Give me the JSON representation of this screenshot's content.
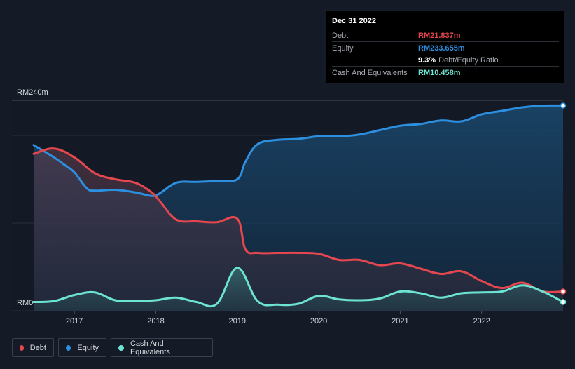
{
  "tooltip": {
    "date": "Dec 31 2022",
    "debt_label": "Debt",
    "debt_value": "RM21.837m",
    "equity_label": "Equity",
    "equity_value": "RM233.655m",
    "ratio_value": "9.3%",
    "ratio_label": "Debt/Equity Ratio",
    "cash_label": "Cash And Equivalents",
    "cash_value": "RM10.458m"
  },
  "legend": {
    "debt": "Debt",
    "equity": "Equity",
    "cash": "Cash And Equivalents"
  },
  "colors": {
    "debt": "#e5474f",
    "equity": "#2d8fe0",
    "cash": "#6de4d2",
    "background": "#151b26"
  },
  "chart_data": {
    "type": "area",
    "title": "",
    "xlabel": "",
    "ylabel": "",
    "y_top_label": "RM240m",
    "y_bottom_label": "RM0",
    "ylim": [
      0,
      240
    ],
    "xlim": [
      2016.5,
      2023.0
    ],
    "x_ticks": [
      "2017",
      "2018",
      "2019",
      "2020",
      "2021",
      "2022"
    ],
    "series": [
      {
        "name": "Equity",
        "x": [
          2016.5,
          2016.75,
          2016.9,
          2017.0,
          2017.15,
          2017.25,
          2017.5,
          2017.75,
          2017.95,
          2018.05,
          2018.25,
          2018.5,
          2018.75,
          2019.0,
          2019.1,
          2019.25,
          2019.5,
          2019.75,
          2020.0,
          2020.25,
          2020.5,
          2020.75,
          2021.0,
          2021.25,
          2021.5,
          2021.75,
          2022.0,
          2022.25,
          2022.5,
          2022.75,
          2023.0
        ],
        "values": [
          189,
          175,
          165,
          158,
          140,
          137,
          138,
          135,
          131,
          134,
          146,
          147,
          148,
          150,
          170,
          190,
          195,
          196,
          199,
          199,
          201,
          206,
          211,
          213,
          217,
          216,
          224,
          228,
          232,
          234,
          234
        ]
      },
      {
        "name": "Debt",
        "x": [
          2016.5,
          2016.75,
          2017.0,
          2017.25,
          2017.5,
          2017.75,
          2017.95,
          2018.05,
          2018.25,
          2018.5,
          2018.75,
          2019.0,
          2019.1,
          2019.25,
          2019.5,
          2019.75,
          2020.0,
          2020.25,
          2020.5,
          2020.75,
          2021.0,
          2021.25,
          2021.5,
          2021.75,
          2022.0,
          2022.25,
          2022.5,
          2022.75,
          2023.0
        ],
        "values": [
          179,
          185,
          175,
          157,
          150,
          146,
          135,
          125,
          104,
          102,
          101,
          105,
          70,
          66,
          66,
          66,
          65,
          58,
          58,
          52,
          54,
          48,
          42,
          45,
          34,
          26,
          32,
          22,
          22
        ]
      },
      {
        "name": "Cash And Equivalents",
        "x": [
          2016.5,
          2016.75,
          2017.0,
          2017.25,
          2017.5,
          2017.75,
          2018.0,
          2018.25,
          2018.5,
          2018.75,
          2019.0,
          2019.25,
          2019.5,
          2019.75,
          2020.0,
          2020.25,
          2020.5,
          2020.75,
          2021.0,
          2021.25,
          2021.5,
          2021.75,
          2022.0,
          2022.25,
          2022.5,
          2022.75,
          2023.0
        ],
        "values": [
          10,
          11,
          18,
          21,
          12,
          11,
          12,
          15,
          10,
          8,
          49,
          11,
          7,
          8,
          17,
          13,
          12,
          14,
          22,
          20,
          15,
          20,
          21,
          22,
          29,
          22,
          10
        ]
      }
    ]
  }
}
